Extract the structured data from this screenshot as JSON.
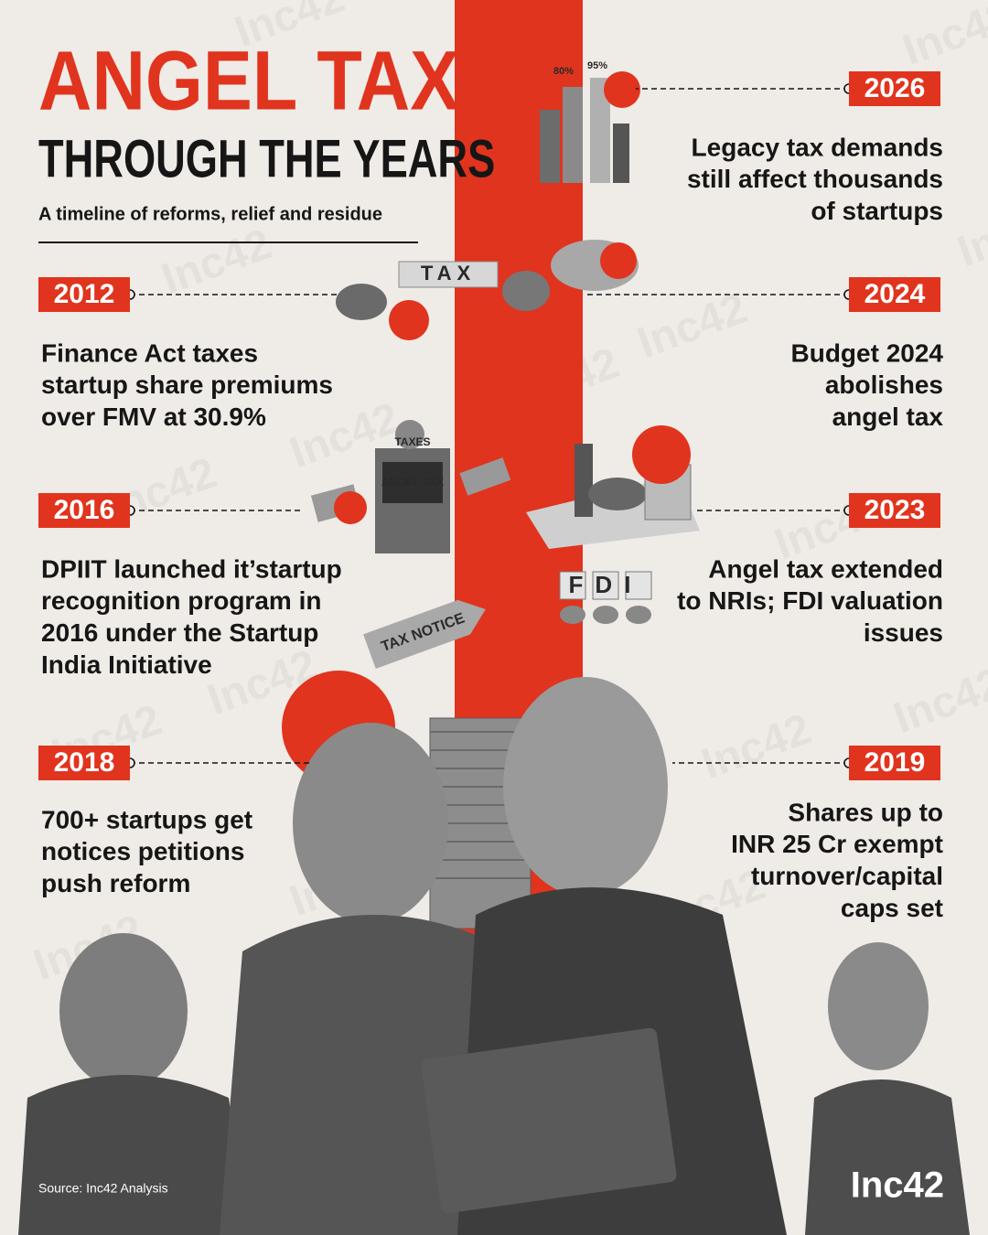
{
  "header": {
    "title": "ANGEL TAX",
    "subtitle": "THROUGH THE YEARS",
    "tagline": "A timeline of reforms, relief and residue"
  },
  "timeline": [
    {
      "year": "2026",
      "lines": [
        "Legacy tax demands",
        "still affect thousands",
        "of startups"
      ]
    },
    {
      "year": "2012",
      "lines": [
        "Finance Act taxes",
        "startup share premiums",
        "over FMV at 30.9%"
      ]
    },
    {
      "year": "2024",
      "lines": [
        "Budget 2024",
        "abolishes",
        "angel tax"
      ]
    },
    {
      "year": "2016",
      "lines": [
        "DPIIT launched it’startup",
        "recognition program in",
        "2016 under the Startup",
        "India Initiative"
      ]
    },
    {
      "year": "2023",
      "lines": [
        "Angel tax extended",
        "to NRIs; FDI valuation",
        "issues"
      ]
    },
    {
      "year": "2018",
      "lines": [
        "700+ startups get",
        "notices petitions",
        "push reform"
      ]
    },
    {
      "year": "2019",
      "lines": [
        "Shares up to",
        "INR 25 Cr exempt",
        "turnover/capital",
        "caps set"
      ]
    }
  ],
  "illustrations": {
    "chart_low": "80%",
    "chart_high": "95%",
    "blocks": "TAX",
    "box_top": "TAXES",
    "box_label": "ANGEL TAX",
    "cubes": "FDI",
    "notice": "TAX NOTICE"
  },
  "watermark": "Inc42",
  "footer": {
    "source": "Source: Inc42 Analysis",
    "logo": "Inc42"
  }
}
